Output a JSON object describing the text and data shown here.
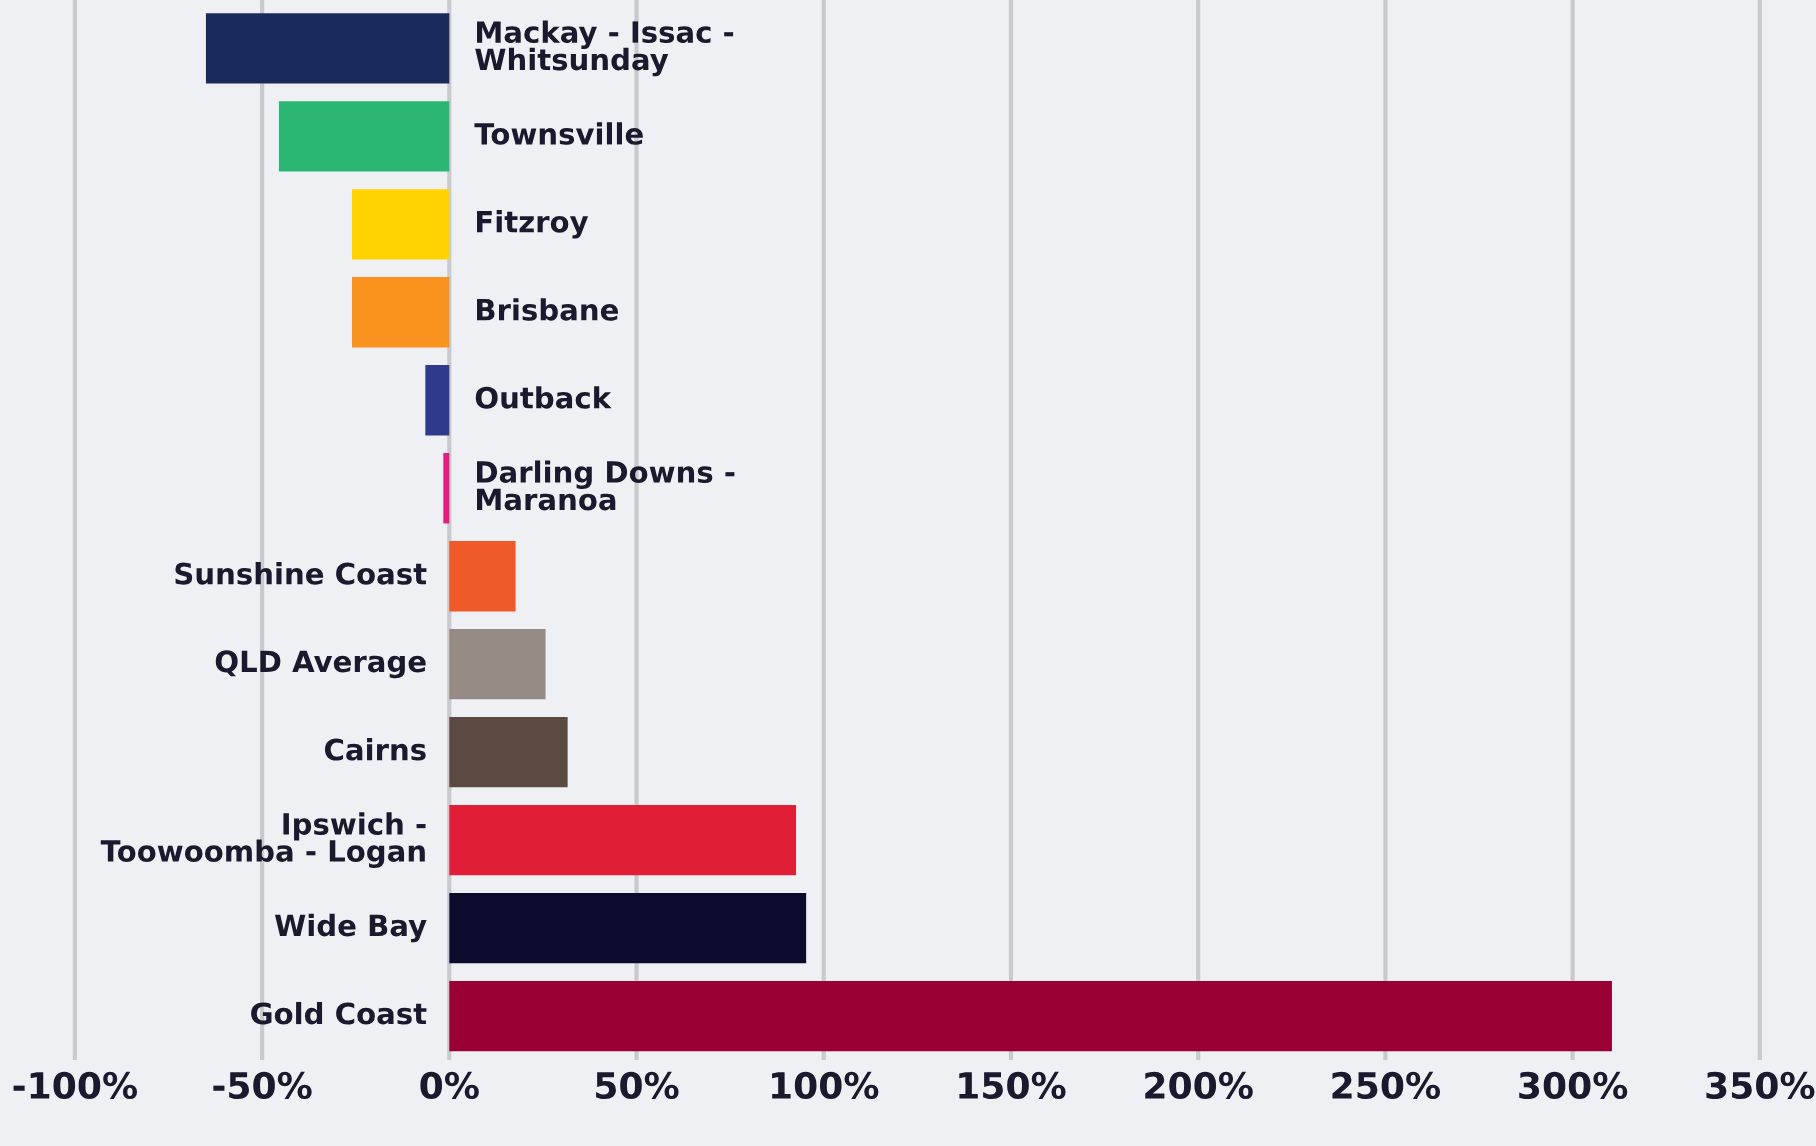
{
  "chart_data": {
    "type": "bar",
    "orientation": "horizontal",
    "categories": [
      "Mackay - Issac -\nWhitsunday",
      "Townsville",
      "Fitzroy",
      "Brisbane",
      "Outback",
      "Darling Downs -\nMaranoa",
      "Sunshine Coast",
      "QLD Average",
      "Cairns",
      "Ipswich -\nToowoomba - Logan",
      "Wide Bay",
      "Gold Coast"
    ],
    "values": [
      -65,
      -45.5,
      -26,
      -26,
      -6.4,
      -1.6,
      17.7,
      25.7,
      31.6,
      92.6,
      95.3,
      310.5
    ],
    "colors": [
      "#1a2a5a",
      "#2bb673",
      "#ffd200",
      "#f7931e",
      "#2e3a8c",
      "#e6197e",
      "#f05a28",
      "#958b84",
      "#5a4a42",
      "#e01e37",
      "#0b0b2e",
      "#9b0034"
    ],
    "xlim": [
      -120,
      365
    ],
    "xticks": [
      {
        "value": -100,
        "label": "-100%"
      },
      {
        "value": -50,
        "label": "-50%"
      },
      {
        "value": 0,
        "label": "0%"
      },
      {
        "value": 50,
        "label": "50%"
      },
      {
        "value": 100,
        "label": "100%"
      },
      {
        "value": 150,
        "label": "150%"
      },
      {
        "value": 200,
        "label": "200%"
      },
      {
        "value": 250,
        "label": "250%"
      },
      {
        "value": 300,
        "label": "300%"
      },
      {
        "value": 350,
        "label": "350%"
      }
    ],
    "grid": "x",
    "tick_labels": "x"
  }
}
